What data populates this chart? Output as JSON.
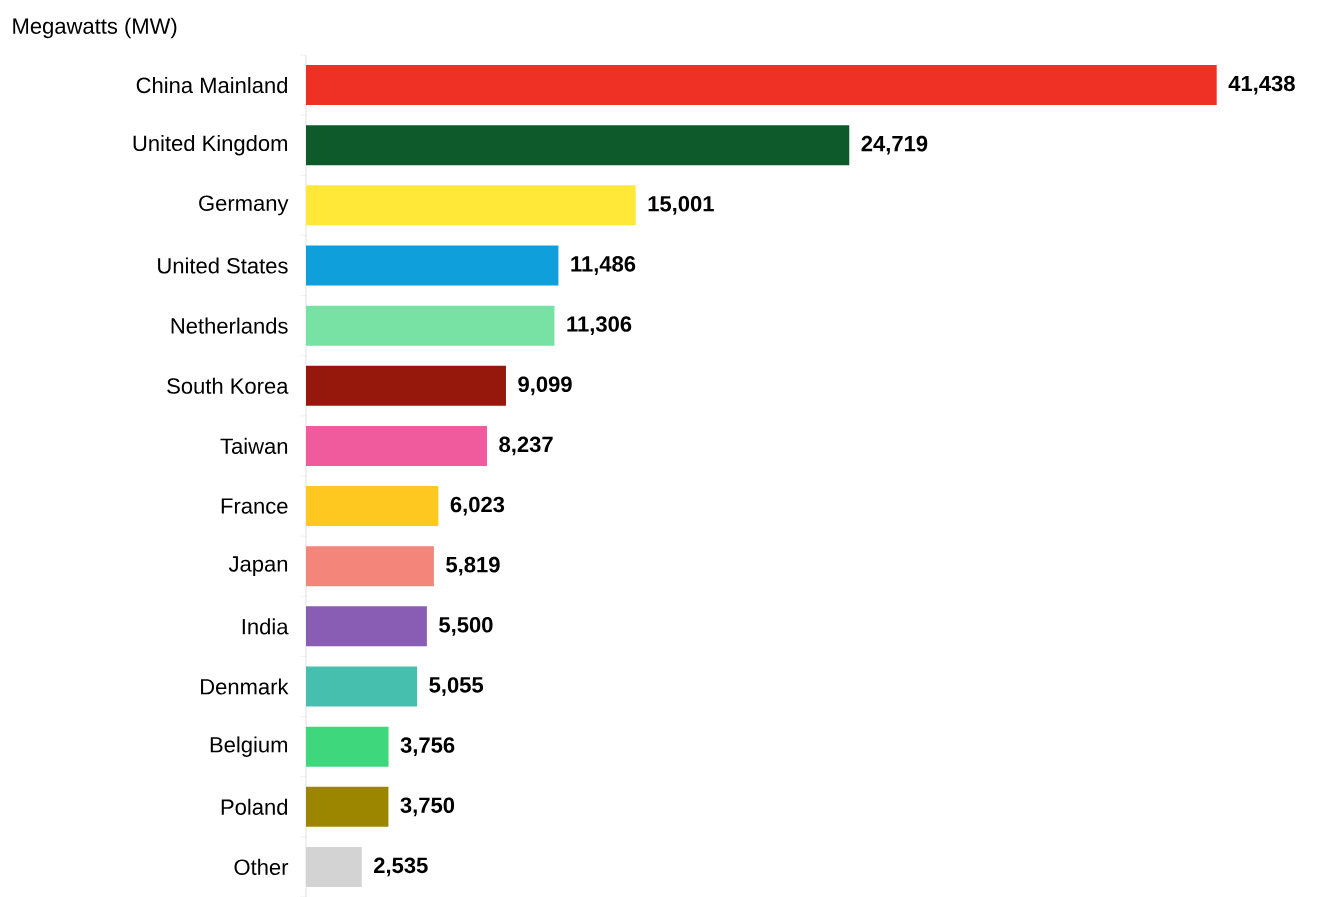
{
  "chart_data": {
    "type": "bar",
    "orientation": "horizontal",
    "title": "Megawatts (MW)",
    "value_labels": [
      "41,438",
      "24,719",
      "15,001",
      "11,486",
      "11,306",
      "9,099",
      "8,237",
      "6,023",
      "5,819",
      "5,500",
      "5,055",
      "3,756",
      "3,750",
      "2,535"
    ],
    "categories": [
      "China Mainland",
      "United Kingdom",
      "Germany",
      "United States",
      "Netherlands",
      "South Korea",
      "Taiwan",
      "France",
      "Japan",
      "India",
      "Denmark",
      "Belgium",
      "Poland",
      "Other"
    ],
    "values": [
      41438,
      24719,
      15001,
      11486,
      11306,
      9099,
      8237,
      6023,
      5819,
      5500,
      5055,
      3756,
      3750,
      2535
    ],
    "colors": [
      "#ee3124",
      "#0f5a2b",
      "#ffe838",
      "#0f9fdb",
      "#77e2a4",
      "#96170c",
      "#ef5b9c",
      "#ffc820",
      "#f3857a",
      "#8a5db4",
      "#46bfae",
      "#3fd77c",
      "#9c8600",
      "#d3d3d3"
    ]
  }
}
